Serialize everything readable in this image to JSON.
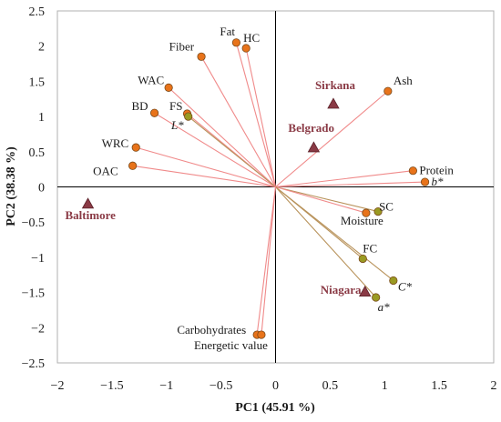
{
  "chart_data": {
    "type": "scatter",
    "xlabel": "PC1 (45.91 %)",
    "ylabel": "PC2 (38.38 %)",
    "xlim": [
      -2,
      2
    ],
    "ylim": [
      -2.5,
      2.5
    ],
    "x_ticks": [
      "−2",
      "−1.5",
      "−1",
      "−0.5",
      "0",
      "0.5",
      "1",
      "1.5",
      "2"
    ],
    "y_ticks": [
      "2.5",
      "2",
      "1.5",
      "1",
      "0.5",
      "0",
      "−0.5",
      "−1",
      "−1.5",
      "−2",
      "−2.5"
    ],
    "grid": false,
    "variables": [
      {
        "label": "Fat",
        "x": -0.36,
        "y": 2.05,
        "color": "orange"
      },
      {
        "label": "HC",
        "x": -0.27,
        "y": 1.97,
        "color": "orange"
      },
      {
        "label": "Fiber",
        "x": -0.68,
        "y": 1.85,
        "color": "orange"
      },
      {
        "label": "WAC",
        "x": -0.98,
        "y": 1.41,
        "color": "orange"
      },
      {
        "label": "BD",
        "x": -1.11,
        "y": 1.05,
        "color": "orange"
      },
      {
        "label": "FS",
        "x": -0.81,
        "y": 1.04,
        "color": "orange"
      },
      {
        "label": "L*",
        "x": -0.8,
        "y": 1.0,
        "color": "olive"
      },
      {
        "label": "WRC",
        "x": -1.28,
        "y": 0.56,
        "color": "orange"
      },
      {
        "label": "OAC",
        "x": -1.31,
        "y": 0.3,
        "color": "orange"
      },
      {
        "label": "Ash",
        "x": 1.03,
        "y": 1.36,
        "color": "orange"
      },
      {
        "label": "Protein",
        "x": 1.26,
        "y": 0.23,
        "color": "orange"
      },
      {
        "label": "b*",
        "x": 1.37,
        "y": 0.07,
        "color": "orange"
      },
      {
        "label": "SC",
        "x": 0.94,
        "y": -0.35,
        "color": "olive"
      },
      {
        "label": "Moisture",
        "x": 0.83,
        "y": -0.37,
        "color": "orange"
      },
      {
        "label": "FC",
        "x": 0.8,
        "y": -1.02,
        "color": "olive"
      },
      {
        "label": "C*",
        "x": 1.08,
        "y": -1.33,
        "color": "olive"
      },
      {
        "label": "a*",
        "x": 0.92,
        "y": -1.57,
        "color": "olive"
      },
      {
        "label": "Carbohydrates",
        "x": -0.17,
        "y": -2.1,
        "color": "orange"
      },
      {
        "label": "Energetic value",
        "x": -0.13,
        "y": -2.1,
        "color": "orange"
      }
    ],
    "observations": [
      {
        "label": "Sirkana",
        "x": 0.53,
        "y": 1.18
      },
      {
        "label": "Belgrado",
        "x": 0.35,
        "y": 0.56
      },
      {
        "label": "Baltimore",
        "x": -1.72,
        "y": -0.24
      },
      {
        "label": "Niagara",
        "x": 0.82,
        "y": -1.49
      }
    ],
    "colors": {
      "orange": "#e8731a",
      "olive": "#9a9a22",
      "point_edge": "#7a4a1a",
      "vector_orange": "#f08a8a",
      "vector_olive": "#b8925a",
      "observation": "#8a3a45",
      "observation_label": "#8a3a45"
    }
  }
}
